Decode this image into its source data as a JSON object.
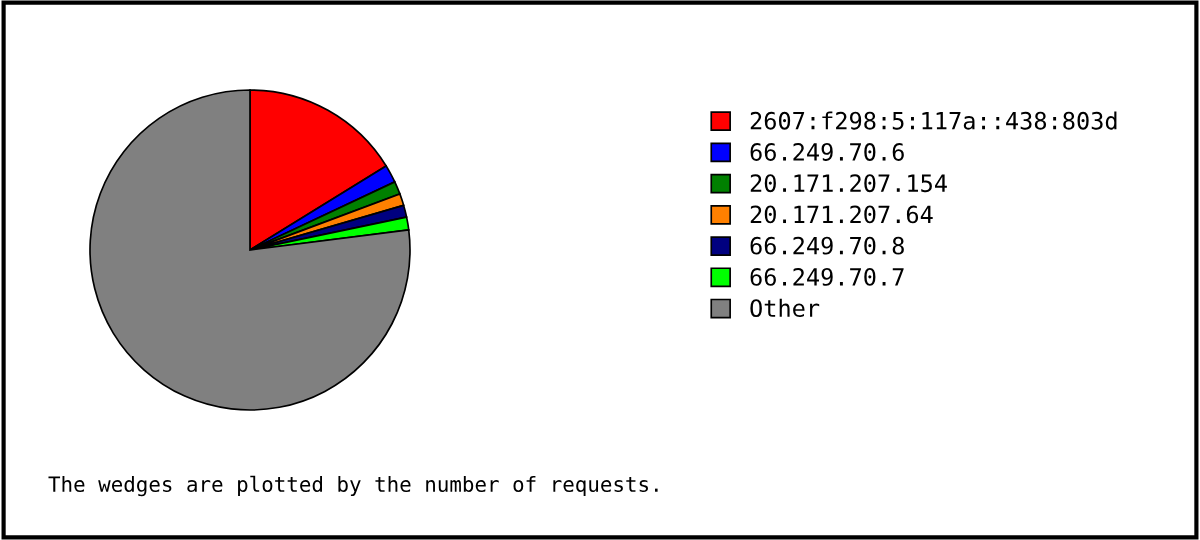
{
  "chart_data": {
    "type": "pie",
    "categories": [
      "2607:f298:5:117a::438:803d",
      "66.249.70.6",
      "20.171.207.154",
      "20.171.207.64",
      "66.249.70.8",
      "66.249.70.7",
      "Other"
    ],
    "values": [
      16.2,
      1.8,
      1.3,
      1.2,
      1.2,
      1.3,
      77.0
    ],
    "colors": [
      "#ff0000",
      "#0000ff",
      "#008000",
      "#ff8000",
      "#000080",
      "#00ff00",
      "#808080"
    ],
    "legend": "right",
    "annotations": [
      "The wedges are plotted by the number of requests."
    ]
  }
}
